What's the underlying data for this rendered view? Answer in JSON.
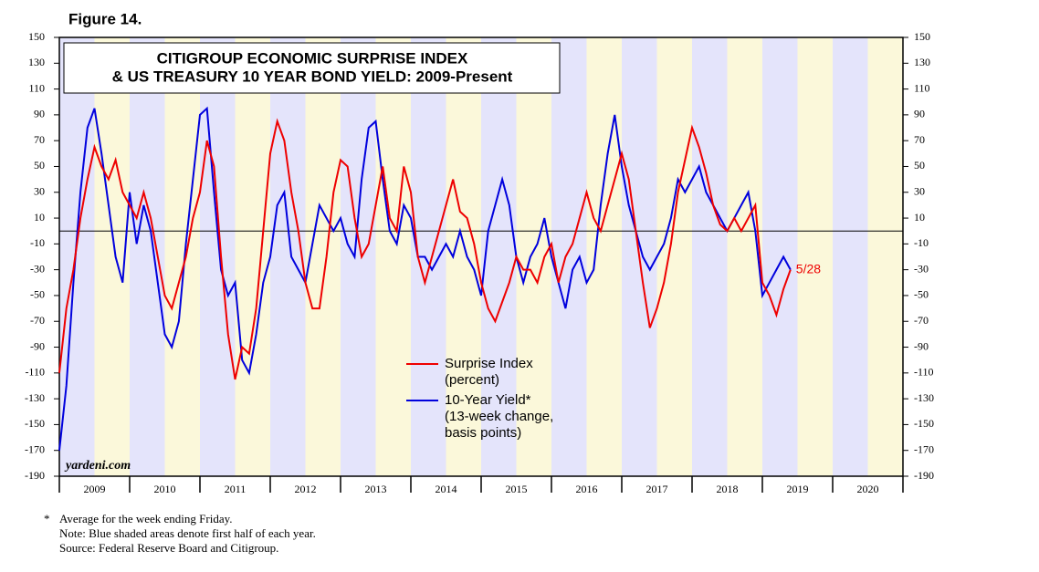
{
  "chart_data": {
    "type": "line",
    "figure_label": "Figure 14.",
    "title": [
      "CITIGROUP ECONOMIC SURPRISE INDEX",
      "& US TREASURY 10 YEAR BOND YIELD: 2009-Present"
    ],
    "categories": [
      "2009",
      "2010",
      "2011",
      "2012",
      "2013",
      "2014",
      "2015",
      "2016",
      "2017",
      "2018",
      "2019",
      "2020"
    ],
    "xlim": [
      2009,
      2021
    ],
    "ylim": [
      -190,
      150
    ],
    "yticks": [
      -190,
      -170,
      -150,
      -130,
      -110,
      -90,
      -70,
      -50,
      -30,
      -10,
      10,
      30,
      50,
      70,
      90,
      110,
      130,
      150
    ],
    "reference_line": 0,
    "shading": {
      "first_half": "#e4e4fb",
      "second_half": "#fbf8da"
    },
    "x": [
      2009.0,
      2009.1,
      2009.2,
      2009.3,
      2009.4,
      2009.5,
      2009.6,
      2009.7,
      2009.8,
      2009.9,
      2010.0,
      2010.1,
      2010.2,
      2010.3,
      2010.4,
      2010.5,
      2010.6,
      2010.7,
      2010.8,
      2010.9,
      2011.0,
      2011.1,
      2011.2,
      2011.3,
      2011.4,
      2011.5,
      2011.6,
      2011.7,
      2011.8,
      2011.9,
      2012.0,
      2012.1,
      2012.2,
      2012.3,
      2012.4,
      2012.5,
      2012.6,
      2012.7,
      2012.8,
      2012.9,
      2013.0,
      2013.1,
      2013.2,
      2013.3,
      2013.4,
      2013.5,
      2013.6,
      2013.7,
      2013.8,
      2013.9,
      2014.0,
      2014.1,
      2014.2,
      2014.3,
      2014.4,
      2014.5,
      2014.6,
      2014.7,
      2014.8,
      2014.9,
      2015.0,
      2015.1,
      2015.2,
      2015.3,
      2015.4,
      2015.5,
      2015.6,
      2015.7,
      2015.8,
      2015.9,
      2016.0,
      2016.1,
      2016.2,
      2016.3,
      2016.4,
      2016.5,
      2016.6,
      2016.7,
      2016.8,
      2016.9,
      2017.0,
      2017.1,
      2017.2,
      2017.3,
      2017.4,
      2017.5,
      2017.6,
      2017.7,
      2017.8,
      2017.9,
      2018.0,
      2018.1,
      2018.2,
      2018.3,
      2018.4,
      2018.5,
      2018.6,
      2018.7,
      2018.8,
      2018.9,
      2019.0,
      2019.1,
      2019.2,
      2019.3,
      2019.4
    ],
    "series": [
      {
        "name": "Surprise Index",
        "legend_sub": [
          "(percent)"
        ],
        "color": "#ee0000",
        "end_label": "5/28",
        "values": [
          -110,
          -60,
          -30,
          10,
          40,
          65,
          50,
          40,
          55,
          30,
          20,
          10,
          30,
          10,
          -20,
          -50,
          -60,
          -40,
          -20,
          10,
          30,
          70,
          50,
          -20,
          -80,
          -115,
          -90,
          -95,
          -60,
          0,
          60,
          85,
          70,
          30,
          0,
          -40,
          -60,
          -60,
          -20,
          30,
          55,
          50,
          10,
          -20,
          -10,
          20,
          50,
          10,
          0,
          50,
          30,
          -20,
          -40,
          -20,
          0,
          20,
          40,
          15,
          10,
          -10,
          -40,
          -60,
          -70,
          -55,
          -40,
          -20,
          -30,
          -30,
          -40,
          -20,
          -10,
          -40,
          -20,
          -10,
          10,
          30,
          10,
          0,
          20,
          40,
          60,
          40,
          0,
          -40,
          -75,
          -60,
          -40,
          -10,
          30,
          55,
          80,
          65,
          45,
          20,
          5,
          0,
          10,
          0,
          10,
          20,
          -40,
          -50,
          -65,
          -45,
          -30
        ]
      },
      {
        "name": "10-Year Yield*",
        "legend_sub": [
          "(13-week change,",
          "basis points)"
        ],
        "color": "#0000dd",
        "values": [
          -170,
          -120,
          -40,
          30,
          80,
          95,
          60,
          20,
          -20,
          -40,
          30,
          -10,
          20,
          0,
          -40,
          -80,
          -90,
          -70,
          -10,
          40,
          90,
          95,
          30,
          -30,
          -50,
          -40,
          -100,
          -110,
          -80,
          -40,
          -20,
          20,
          30,
          -20,
          -30,
          -40,
          -10,
          20,
          10,
          0,
          10,
          -10,
          -20,
          40,
          80,
          85,
          40,
          0,
          -10,
          20,
          10,
          -20,
          -20,
          -30,
          -20,
          -10,
          -20,
          0,
          -20,
          -30,
          -50,
          0,
          20,
          40,
          20,
          -20,
          -40,
          -20,
          -10,
          10,
          -20,
          -40,
          -60,
          -30,
          -20,
          -40,
          -30,
          20,
          60,
          90,
          50,
          20,
          0,
          -20,
          -30,
          -20,
          -10,
          10,
          40,
          30,
          40,
          50,
          30,
          20,
          10,
          0,
          10,
          20,
          30,
          0,
          -50,
          -40,
          -30,
          -20,
          -30
        ]
      }
    ],
    "watermark": "yardeni.com",
    "footnotes": [
      "*",
      "Average for the week ending Friday.",
      "Note: Blue shaded areas denote first half of each year.",
      "Source: Federal Reserve Board and Citigroup."
    ]
  }
}
